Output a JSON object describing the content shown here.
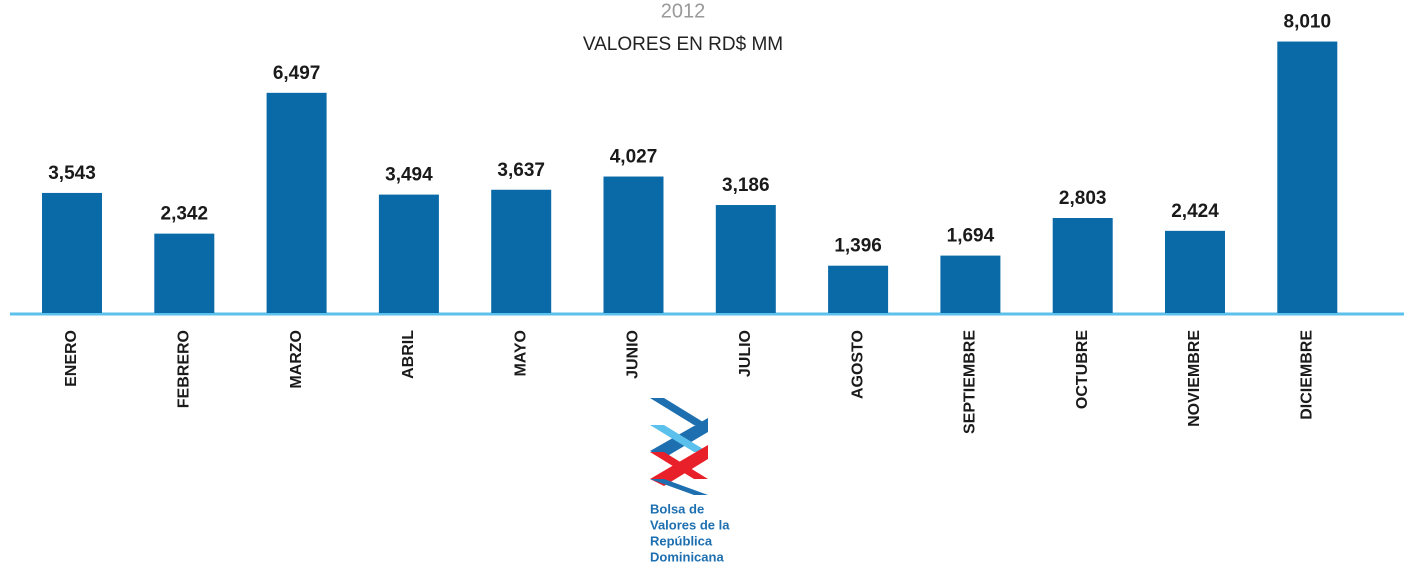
{
  "chart_data": {
    "type": "bar",
    "title": "2012",
    "subtitle": "VALORES EN RD$ MM",
    "categories": [
      "ENERO",
      "FEBRERO",
      "MARZO",
      "ABRIL",
      "MAYO",
      "JUNIO",
      "JULIO",
      "AGOSTO",
      "SEPTIEMBRE",
      "OCTUBRE",
      "NOVIEMBRE",
      "DICIEMBRE"
    ],
    "values": [
      3543,
      2342,
      6497,
      3494,
      3637,
      4027,
      3186,
      1396,
      1694,
      2803,
      2424,
      8010
    ],
    "value_labels": [
      "3,543",
      "2,342",
      "6,497",
      "3,494",
      "3,637",
      "4,027",
      "3,186",
      "1,396",
      "1,694",
      "2,803",
      "2,424",
      "8,010"
    ],
    "color": "#0a6aa8",
    "ylim": [
      0,
      9000
    ]
  },
  "logo": {
    "lines": [
      "Bolsa de",
      "Valores de la",
      "República",
      "Dominicana"
    ]
  }
}
